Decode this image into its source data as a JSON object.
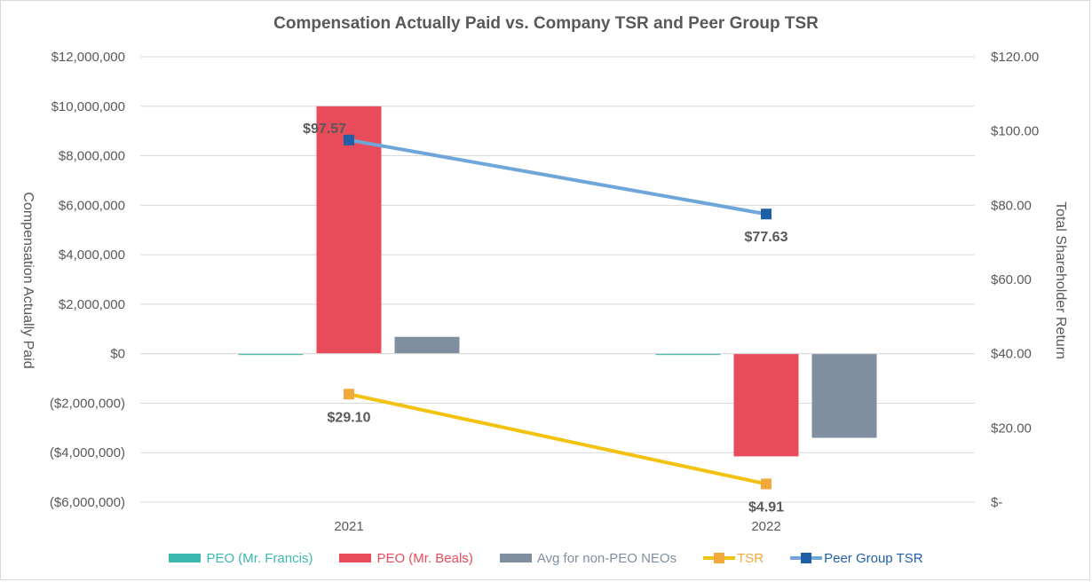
{
  "chart_data": {
    "type": "bar",
    "title": "Compensation Actually Paid vs. Company TSR and Peer Group TSR",
    "categories": [
      "2021",
      "2022"
    ],
    "y_left": {
      "label": "Compensation Actually Paid",
      "ylim": [
        -6000000,
        12000000
      ],
      "ticks": [
        12000000,
        10000000,
        8000000,
        6000000,
        4000000,
        2000000,
        0,
        -2000000,
        -4000000,
        -6000000
      ],
      "tick_labels": [
        "$12,000,000",
        "$10,000,000",
        "$8,000,000",
        "$6,000,000",
        "$4,000,000",
        "$2,000,000",
        "$0",
        "($2,000,000)",
        "($4,000,000)",
        "($6,000,000)"
      ]
    },
    "y_right": {
      "label": "Total Shareholder Return",
      "ylim": [
        0,
        120
      ],
      "ticks": [
        120,
        100,
        80,
        60,
        40,
        20,
        0
      ],
      "tick_labels": [
        "$120.00",
        "$100.00",
        "$80.00",
        "$60.00",
        "$40.00",
        "$20.00",
        "$-"
      ]
    },
    "bar_series": [
      {
        "name": "PEO (Mr. Francis)",
        "color": "#3bb8b0",
        "values": [
          0,
          -50000
        ]
      },
      {
        "name": "PEO (Mr. Beals)",
        "color": "#e84c5a",
        "values": [
          10000000,
          -4150000
        ]
      },
      {
        "name": "Avg for non-PEO NEOs",
        "color": "#7f8fa0",
        "values": [
          680000,
          -3400000
        ]
      }
    ],
    "line_series": [
      {
        "name": "TSR",
        "color": "#f2c20f",
        "marker_color": "#f2a93b",
        "values": [
          29.1,
          4.91
        ],
        "labels": [
          "$29.10",
          "$4.91"
        ],
        "label_pos": [
          "below",
          "below"
        ]
      },
      {
        "name": "Peer Group TSR",
        "color": "#6ea6da",
        "marker_color": "#1f5fa8",
        "values": [
          97.57,
          77.63
        ],
        "labels": [
          "$97.57",
          "$77.63"
        ],
        "label_pos": [
          "left",
          "below"
        ]
      }
    ],
    "grid": true,
    "legend_position": "bottom"
  }
}
